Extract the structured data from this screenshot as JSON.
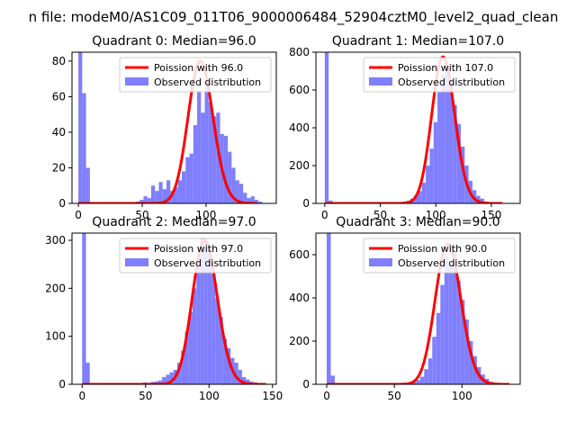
{
  "figure": {
    "suptitle": "n file: modeM0/AS1C09_011T06_9000006484_52904cztM0_level2_quad_clean",
    "colors": {
      "hist": "#7f7fff",
      "poisson": "#ff0000",
      "axis": "#000000",
      "background": "#ffffff"
    }
  },
  "chart_data": [
    {
      "type": "bar",
      "title": "Quadrant 0: Median=96.0",
      "xlim": [
        -5,
        155
      ],
      "ylim": [
        0,
        85
      ],
      "xticks": [
        0,
        50,
        100
      ],
      "yticks": [
        0,
        20,
        40,
        60,
        80
      ],
      "legend": {
        "placement": "top-right",
        "line_label": "Poission with 96.0",
        "hist_label": "Observed distribution"
      },
      "hist": {
        "bin_width": 3,
        "bins": [
          {
            "x": 0,
            "count": 85
          },
          {
            "x": 3,
            "count": 62
          },
          {
            "x": 6,
            "count": 20
          },
          {
            "x": 45,
            "count": 1
          },
          {
            "x": 48,
            "count": 2
          },
          {
            "x": 51,
            "count": 4
          },
          {
            "x": 54,
            "count": 3
          },
          {
            "x": 57,
            "count": 10
          },
          {
            "x": 60,
            "count": 7
          },
          {
            "x": 63,
            "count": 12
          },
          {
            "x": 66,
            "count": 8
          },
          {
            "x": 69,
            "count": 13
          },
          {
            "x": 72,
            "count": 7
          },
          {
            "x": 75,
            "count": 9
          },
          {
            "x": 78,
            "count": 13
          },
          {
            "x": 81,
            "count": 18
          },
          {
            "x": 84,
            "count": 26
          },
          {
            "x": 87,
            "count": 28
          },
          {
            "x": 90,
            "count": 44
          },
          {
            "x": 93,
            "count": 63
          },
          {
            "x": 96,
            "count": 51
          },
          {
            "x": 99,
            "count": 66
          },
          {
            "x": 102,
            "count": 57
          },
          {
            "x": 105,
            "count": 49
          },
          {
            "x": 108,
            "count": 51
          },
          {
            "x": 111,
            "count": 39
          },
          {
            "x": 114,
            "count": 38
          },
          {
            "x": 117,
            "count": 29
          },
          {
            "x": 120,
            "count": 20
          },
          {
            "x": 123,
            "count": 13
          },
          {
            "x": 126,
            "count": 11
          },
          {
            "x": 129,
            "count": 6
          },
          {
            "x": 132,
            "count": 3
          },
          {
            "x": 135,
            "count": 4
          },
          {
            "x": 138,
            "count": 2
          },
          {
            "x": 141,
            "count": 1
          }
        ]
      },
      "poisson": {
        "mean": 96.0,
        "peak": 80,
        "x_start": 0,
        "x_end": 140
      }
    },
    {
      "type": "bar",
      "title": "Quadrant 1: Median=107.0",
      "xlim": [
        -8,
        176
      ],
      "ylim": [
        0,
        800
      ],
      "xticks": [
        0,
        50,
        100,
        150
      ],
      "yticks": [
        0,
        200,
        400,
        600,
        800
      ],
      "legend": {
        "placement": "top-right",
        "line_label": "Poission with 107.0",
        "hist_label": "Observed distribution"
      },
      "hist": {
        "bin_width": 3.5,
        "bins": [
          {
            "x": 0,
            "count": 800
          },
          {
            "x": 3.5,
            "count": 15
          },
          {
            "x": 63,
            "count": 3
          },
          {
            "x": 66.5,
            "count": 6
          },
          {
            "x": 70,
            "count": 10
          },
          {
            "x": 73.5,
            "count": 15
          },
          {
            "x": 77,
            "count": 25
          },
          {
            "x": 80.5,
            "count": 40
          },
          {
            "x": 84,
            "count": 65
          },
          {
            "x": 87.5,
            "count": 110
          },
          {
            "x": 91,
            "count": 200
          },
          {
            "x": 94.5,
            "count": 290
          },
          {
            "x": 98,
            "count": 430
          },
          {
            "x": 101.5,
            "count": 590
          },
          {
            "x": 105,
            "count": 680
          },
          {
            "x": 108.5,
            "count": 720
          },
          {
            "x": 112,
            "count": 640
          },
          {
            "x": 115.5,
            "count": 520
          },
          {
            "x": 119,
            "count": 420
          },
          {
            "x": 122.5,
            "count": 300
          },
          {
            "x": 126,
            "count": 200
          },
          {
            "x": 129.5,
            "count": 120
          },
          {
            "x": 133,
            "count": 70
          },
          {
            "x": 136.5,
            "count": 40
          },
          {
            "x": 140,
            "count": 25
          },
          {
            "x": 143.5,
            "count": 10
          },
          {
            "x": 147,
            "count": 6
          },
          {
            "x": 150.5,
            "count": 3
          }
        ]
      },
      "poisson": {
        "mean": 107.0,
        "peak": 775,
        "x_start": 0,
        "x_end": 160
      }
    },
    {
      "type": "bar",
      "title": "Quadrant 2: Median=97.0",
      "xlim": [
        -8,
        153
      ],
      "ylim": [
        0,
        315
      ],
      "xticks": [
        0,
        50,
        100,
        150
      ],
      "yticks": [
        0,
        100,
        200,
        300
      ],
      "legend": {
        "placement": "top-right",
        "line_label": "Poission with 97.0",
        "hist_label": "Observed distribution"
      },
      "hist": {
        "bin_width": 3,
        "bins": [
          {
            "x": 0,
            "count": 315
          },
          {
            "x": 3,
            "count": 45
          },
          {
            "x": 45,
            "count": 2
          },
          {
            "x": 48,
            "count": 4
          },
          {
            "x": 51,
            "count": 3
          },
          {
            "x": 54,
            "count": 5
          },
          {
            "x": 57,
            "count": 6
          },
          {
            "x": 60,
            "count": 8
          },
          {
            "x": 63,
            "count": 15
          },
          {
            "x": 66,
            "count": 20
          },
          {
            "x": 69,
            "count": 25
          },
          {
            "x": 72,
            "count": 30
          },
          {
            "x": 75,
            "count": 45
          },
          {
            "x": 78,
            "count": 70
          },
          {
            "x": 81,
            "count": 110
          },
          {
            "x": 84,
            "count": 150
          },
          {
            "x": 87,
            "count": 200
          },
          {
            "x": 90,
            "count": 255
          },
          {
            "x": 93,
            "count": 305
          },
          {
            "x": 96,
            "count": 300
          },
          {
            "x": 99,
            "count": 285
          },
          {
            "x": 102,
            "count": 230
          },
          {
            "x": 105,
            "count": 180
          },
          {
            "x": 108,
            "count": 140
          },
          {
            "x": 111,
            "count": 95
          },
          {
            "x": 114,
            "count": 75
          },
          {
            "x": 117,
            "count": 55
          },
          {
            "x": 120,
            "count": 45
          },
          {
            "x": 123,
            "count": 30
          },
          {
            "x": 126,
            "count": 15
          },
          {
            "x": 129,
            "count": 10
          },
          {
            "x": 132,
            "count": 6
          },
          {
            "x": 135,
            "count": 4
          },
          {
            "x": 138,
            "count": 2
          }
        ]
      },
      "poisson": {
        "mean": 97.0,
        "peak": 300,
        "x_start": 0,
        "x_end": 145
      }
    },
    {
      "type": "bar",
      "title": "Quadrant 3: Median=90.0",
      "xlim": [
        -8,
        143
      ],
      "ylim": [
        0,
        700
      ],
      "xticks": [
        0,
        50,
        100
      ],
      "yticks": [
        0,
        200,
        400,
        600
      ],
      "legend": {
        "placement": "top-right",
        "line_label": "Poission with 90.0",
        "hist_label": "Observed distribution"
      },
      "hist": {
        "bin_width": 3,
        "bins": [
          {
            "x": 0,
            "count": 700
          },
          {
            "x": 3,
            "count": 40
          },
          {
            "x": 54,
            "count": 4
          },
          {
            "x": 57,
            "count": 6
          },
          {
            "x": 60,
            "count": 8
          },
          {
            "x": 63,
            "count": 12
          },
          {
            "x": 66,
            "count": 20
          },
          {
            "x": 69,
            "count": 35
          },
          {
            "x": 72,
            "count": 70
          },
          {
            "x": 75,
            "count": 120
          },
          {
            "x": 78,
            "count": 220
          },
          {
            "x": 81,
            "count": 330
          },
          {
            "x": 84,
            "count": 460
          },
          {
            "x": 87,
            "count": 590
          },
          {
            "x": 90,
            "count": 560
          },
          {
            "x": 93,
            "count": 650
          },
          {
            "x": 96,
            "count": 480
          },
          {
            "x": 99,
            "count": 390
          },
          {
            "x": 102,
            "count": 300
          },
          {
            "x": 105,
            "count": 200
          },
          {
            "x": 108,
            "count": 130
          },
          {
            "x": 111,
            "count": 80
          },
          {
            "x": 114,
            "count": 45
          },
          {
            "x": 117,
            "count": 25
          },
          {
            "x": 120,
            "count": 12
          },
          {
            "x": 123,
            "count": 6
          },
          {
            "x": 126,
            "count": 3
          }
        ]
      },
      "poisson": {
        "mean": 90.0,
        "peak": 650,
        "x_start": 0,
        "x_end": 135
      }
    }
  ]
}
